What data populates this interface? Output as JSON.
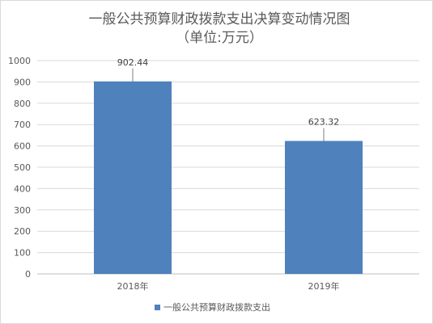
{
  "chart_data": {
    "type": "bar",
    "title": "一般公共预算财政拨款支出决算变动情况图",
    "subtitle": "（单位:万元）",
    "categories": [
      "2018年",
      "2019年"
    ],
    "series": [
      {
        "name": "一般公共预算财政拨款支出",
        "values": [
          902.44,
          623.32
        ],
        "data_labels": [
          "902.44",
          "623.32"
        ],
        "color": "#4f81bd"
      }
    ],
    "yticks": [
      "0",
      "100",
      "200",
      "300",
      "400",
      "500",
      "600",
      "700",
      "800",
      "900",
      "1000"
    ],
    "ylim": [
      0,
      1000
    ],
    "grid": true,
    "legend": "bottom-center",
    "xlabel": "",
    "ylabel": ""
  }
}
